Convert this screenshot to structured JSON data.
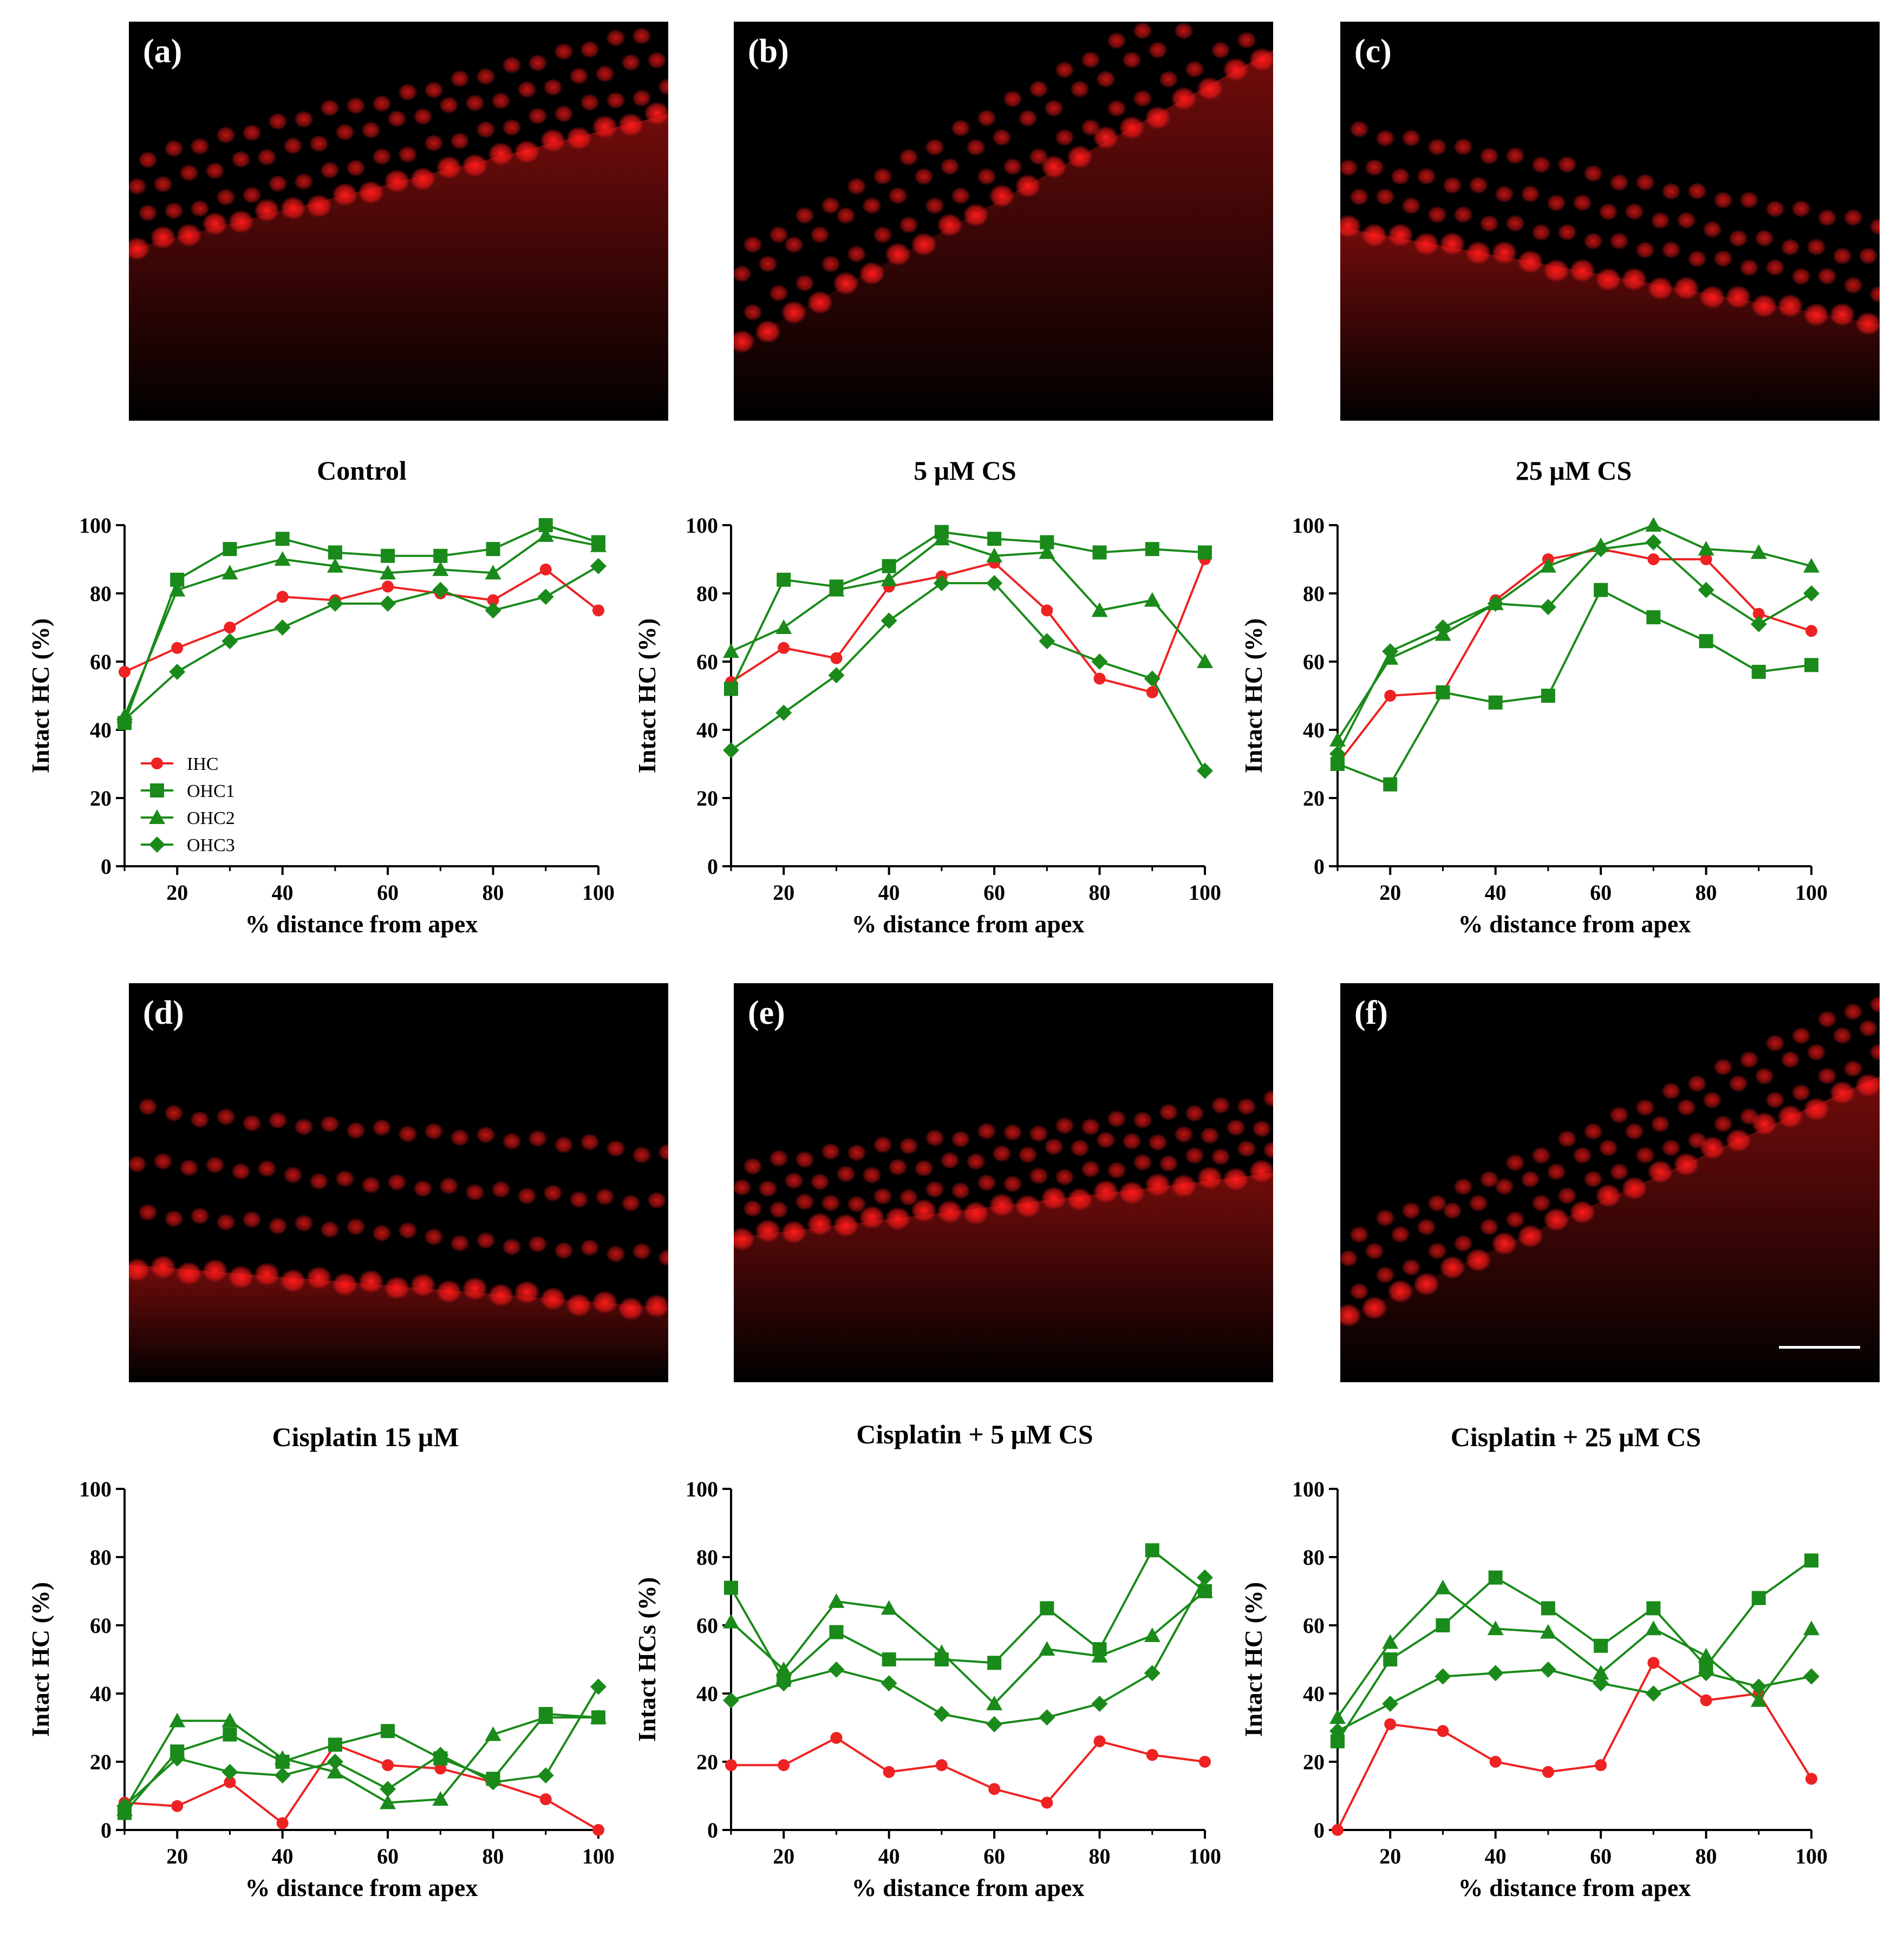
{
  "panels": [
    {
      "label": "(a)",
      "name": "panel-a"
    },
    {
      "label": "(b)",
      "name": "panel-b"
    },
    {
      "label": "(c)",
      "name": "panel-c"
    },
    {
      "label": "(d)",
      "name": "panel-d"
    },
    {
      "label": "(e)",
      "name": "panel-e"
    },
    {
      "label": "(f)",
      "name": "panel-f"
    }
  ],
  "colors": {
    "ihc": "#ee2222",
    "ohc": "#1a8a1a",
    "fluorescence": "#ff1a1a"
  },
  "legend": [
    {
      "name": "IHC",
      "marker": "circle"
    },
    {
      "name": "OHC1",
      "marker": "square"
    },
    {
      "name": "OHC2",
      "marker": "triangle"
    },
    {
      "name": "OHC3",
      "marker": "diamond"
    }
  ],
  "chart_data": [
    {
      "type": "line",
      "title": "Control",
      "xlabel": "%  distance from apex",
      "ylabel": "Intact HC (%)",
      "xlim": [
        10,
        100
      ],
      "ylim": [
        0,
        100
      ],
      "xticks": [
        20,
        40,
        60,
        80,
        100
      ],
      "yticks": [
        0,
        20,
        40,
        60,
        80,
        100
      ],
      "legend_position": "bottom-left",
      "x": [
        10,
        20,
        30,
        40,
        50,
        60,
        70,
        80,
        90,
        100
      ],
      "series": [
        {
          "name": "IHC",
          "values": [
            57,
            64,
            70,
            79,
            78,
            82,
            80,
            78,
            87,
            75
          ]
        },
        {
          "name": "OHC1",
          "values": [
            42,
            84,
            93,
            96,
            92,
            91,
            91,
            93,
            100,
            95
          ]
        },
        {
          "name": "OHC2",
          "values": [
            44,
            81,
            86,
            90,
            88,
            86,
            87,
            86,
            97,
            94
          ]
        },
        {
          "name": "OHC3",
          "values": [
            43,
            57,
            66,
            70,
            77,
            77,
            81,
            75,
            79,
            88
          ]
        }
      ]
    },
    {
      "type": "line",
      "title": "5 μM CS",
      "xlabel": "%  distance from apex",
      "ylabel": "Intact HC (%)",
      "xlim": [
        10,
        100
      ],
      "ylim": [
        0,
        100
      ],
      "xticks": [
        20,
        40,
        60,
        80,
        100
      ],
      "yticks": [
        0,
        20,
        40,
        60,
        80,
        100
      ],
      "x": [
        10,
        20,
        30,
        40,
        50,
        60,
        70,
        80,
        90,
        100
      ],
      "series": [
        {
          "name": "IHC",
          "values": [
            54,
            64,
            61,
            82,
            85,
            89,
            75,
            55,
            51,
            90
          ]
        },
        {
          "name": "OHC1",
          "values": [
            52,
            84,
            82,
            88,
            98,
            96,
            95,
            92,
            93,
            92
          ]
        },
        {
          "name": "OHC2",
          "values": [
            63,
            70,
            81,
            84,
            96,
            91,
            92,
            75,
            78,
            60
          ]
        },
        {
          "name": "OHC3",
          "values": [
            34,
            45,
            56,
            72,
            83,
            83,
            66,
            60,
            55,
            28
          ]
        }
      ]
    },
    {
      "type": "line",
      "title": "25 μM CS",
      "xlabel": "%  distance from apex",
      "ylabel": "Intact HC (%)",
      "xlim": [
        10,
        100
      ],
      "ylim": [
        0,
        100
      ],
      "xticks": [
        20,
        40,
        60,
        80,
        100
      ],
      "yticks": [
        0,
        20,
        40,
        60,
        80,
        100
      ],
      "x": [
        10,
        20,
        30,
        40,
        50,
        60,
        70,
        80,
        90,
        100
      ],
      "series": [
        {
          "name": "IHC",
          "values": [
            30,
            50,
            51,
            78,
            90,
            93,
            90,
            90,
            74,
            69
          ]
        },
        {
          "name": "OHC1",
          "values": [
            30,
            24,
            51,
            48,
            50,
            81,
            73,
            66,
            57,
            59
          ]
        },
        {
          "name": "OHC2",
          "values": [
            37,
            61,
            68,
            77,
            88,
            94,
            100,
            93,
            92,
            88
          ]
        },
        {
          "name": "OHC3",
          "values": [
            33,
            63,
            70,
            77,
            76,
            93,
            95,
            81,
            71,
            80
          ]
        }
      ]
    },
    {
      "type": "line",
      "title": "Cisplatin 15 μM",
      "xlabel": "%  distance from apex",
      "ylabel": "Intact HC (%)",
      "xlim": [
        10,
        100
      ],
      "ylim": [
        0,
        100
      ],
      "xticks": [
        20,
        40,
        60,
        80,
        100
      ],
      "yticks": [
        0,
        20,
        40,
        60,
        80,
        100
      ],
      "x": [
        10,
        20,
        30,
        40,
        50,
        60,
        70,
        80,
        90,
        100
      ],
      "series": [
        {
          "name": "IHC",
          "values": [
            8,
            7,
            14,
            2,
            25,
            19,
            18,
            14,
            9,
            0
          ]
        },
        {
          "name": "OHC1",
          "values": [
            5,
            23,
            28,
            20,
            25,
            29,
            21,
            15,
            34,
            33
          ]
        },
        {
          "name": "OHC2",
          "values": [
            6,
            32,
            32,
            21,
            17,
            8,
            9,
            28,
            33,
            33
          ]
        },
        {
          "name": "OHC3",
          "values": [
            7,
            21,
            17,
            16,
            20,
            12,
            22,
            14,
            16,
            42
          ]
        }
      ]
    },
    {
      "type": "line",
      "title": "Cisplatin + 5 μM CS",
      "xlabel": "%  distance from apex",
      "ylabel": "Intact HCs (%)",
      "xlim": [
        10,
        100
      ],
      "ylim": [
        0,
        100
      ],
      "xticks": [
        20,
        40,
        60,
        80,
        100
      ],
      "yticks": [
        0,
        20,
        40,
        60,
        80,
        100
      ],
      "x": [
        10,
        20,
        30,
        40,
        50,
        60,
        70,
        80,
        90,
        100
      ],
      "series": [
        {
          "name": "IHC",
          "values": [
            19,
            19,
            27,
            17,
            19,
            12,
            8,
            26,
            22,
            20
          ]
        },
        {
          "name": "OHC1",
          "values": [
            71,
            44,
            58,
            50,
            50,
            49,
            65,
            53,
            82,
            70
          ]
        },
        {
          "name": "OHC2",
          "values": [
            61,
            47,
            67,
            65,
            52,
            37,
            53,
            51,
            57,
            70
          ]
        },
        {
          "name": "OHC3",
          "values": [
            38,
            43,
            47,
            43,
            34,
            31,
            33,
            37,
            46,
            74
          ]
        }
      ]
    },
    {
      "type": "line",
      "title": "Cisplatin + 25 μM CS",
      "xlabel": "%  distance from apex",
      "ylabel": "Intact HC (%)",
      "xlim": [
        10,
        100
      ],
      "ylim": [
        0,
        100
      ],
      "xticks": [
        20,
        40,
        60,
        80,
        100
      ],
      "yticks": [
        0,
        20,
        40,
        60,
        80,
        100
      ],
      "x": [
        10,
        20,
        30,
        40,
        50,
        60,
        70,
        80,
        90,
        100
      ],
      "series": [
        {
          "name": "IHC",
          "values": [
            0,
            31,
            29,
            20,
            17,
            19,
            49,
            38,
            40,
            15
          ]
        },
        {
          "name": "OHC1",
          "values": [
            26,
            50,
            60,
            74,
            65,
            54,
            65,
            48,
            68,
            79
          ]
        },
        {
          "name": "OHC2",
          "values": [
            33,
            55,
            71,
            59,
            58,
            46,
            59,
            51,
            38,
            59
          ]
        },
        {
          "name": "OHC3",
          "values": [
            29,
            37,
            45,
            46,
            47,
            43,
            40,
            46,
            42,
            45
          ]
        }
      ]
    }
  ]
}
